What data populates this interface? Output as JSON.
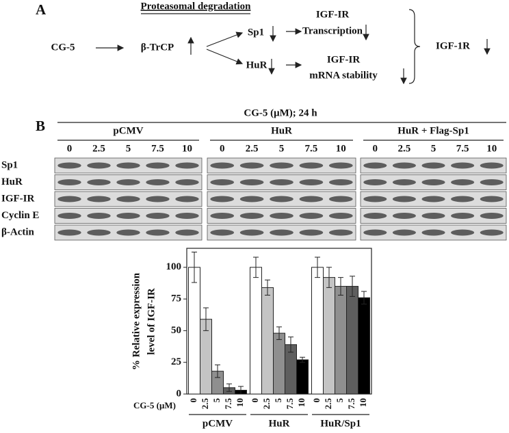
{
  "panel_a": {
    "label": "A",
    "header": "Proteasomal degradation",
    "nodes": {
      "start": "CG-5",
      "btrcp": "β-TrCP",
      "sp1": "Sp1",
      "hur": "HuR",
      "transcription": [
        "IGF-IR",
        "Transcription"
      ],
      "mrna": [
        "IGF-IR",
        "mRNA stability"
      ],
      "result": "IGF-1R"
    }
  },
  "panel_b": {
    "label": "B",
    "treatment": "CG-5 (μM); 24 h",
    "blot": {
      "groups": [
        "pCMV",
        "HuR",
        "HuR + Flag-Sp1"
      ],
      "doses": [
        "0",
        "2.5",
        "5",
        "7.5",
        "10"
      ],
      "proteins": [
        "Sp1",
        "HuR",
        "IGF-IR",
        "Cyclin E",
        "β-Actin"
      ]
    }
  },
  "chart_data": {
    "type": "bar",
    "ylabel": [
      "% Relative expression",
      "level of IGF-IR"
    ],
    "xlabel": "CG-5 (μM)",
    "categories": [
      "0",
      "2.5",
      "5",
      "7.5",
      "10"
    ],
    "colors": [
      "#ffffff",
      "#c4c4c4",
      "#8f8f8f",
      "#5e5e5e",
      "#000000"
    ],
    "groups": [
      {
        "name": "pCMV",
        "values": [
          100,
          59,
          18,
          5,
          3
        ],
        "errors": [
          12,
          9,
          5,
          3,
          3
        ]
      },
      {
        "name": "HuR",
        "values": [
          100,
          84,
          48,
          39,
          27
        ],
        "errors": [
          8,
          6,
          5,
          6,
          2
        ]
      },
      {
        "name": "HuR/Sp1",
        "values": [
          100,
          92,
          85,
          85,
          76
        ],
        "errors": [
          8,
          8,
          7,
          8,
          5
        ]
      }
    ],
    "ylim": [
      0,
      115
    ],
    "yticks": [
      0,
      25,
      50,
      75,
      100
    ],
    "grid": false
  }
}
